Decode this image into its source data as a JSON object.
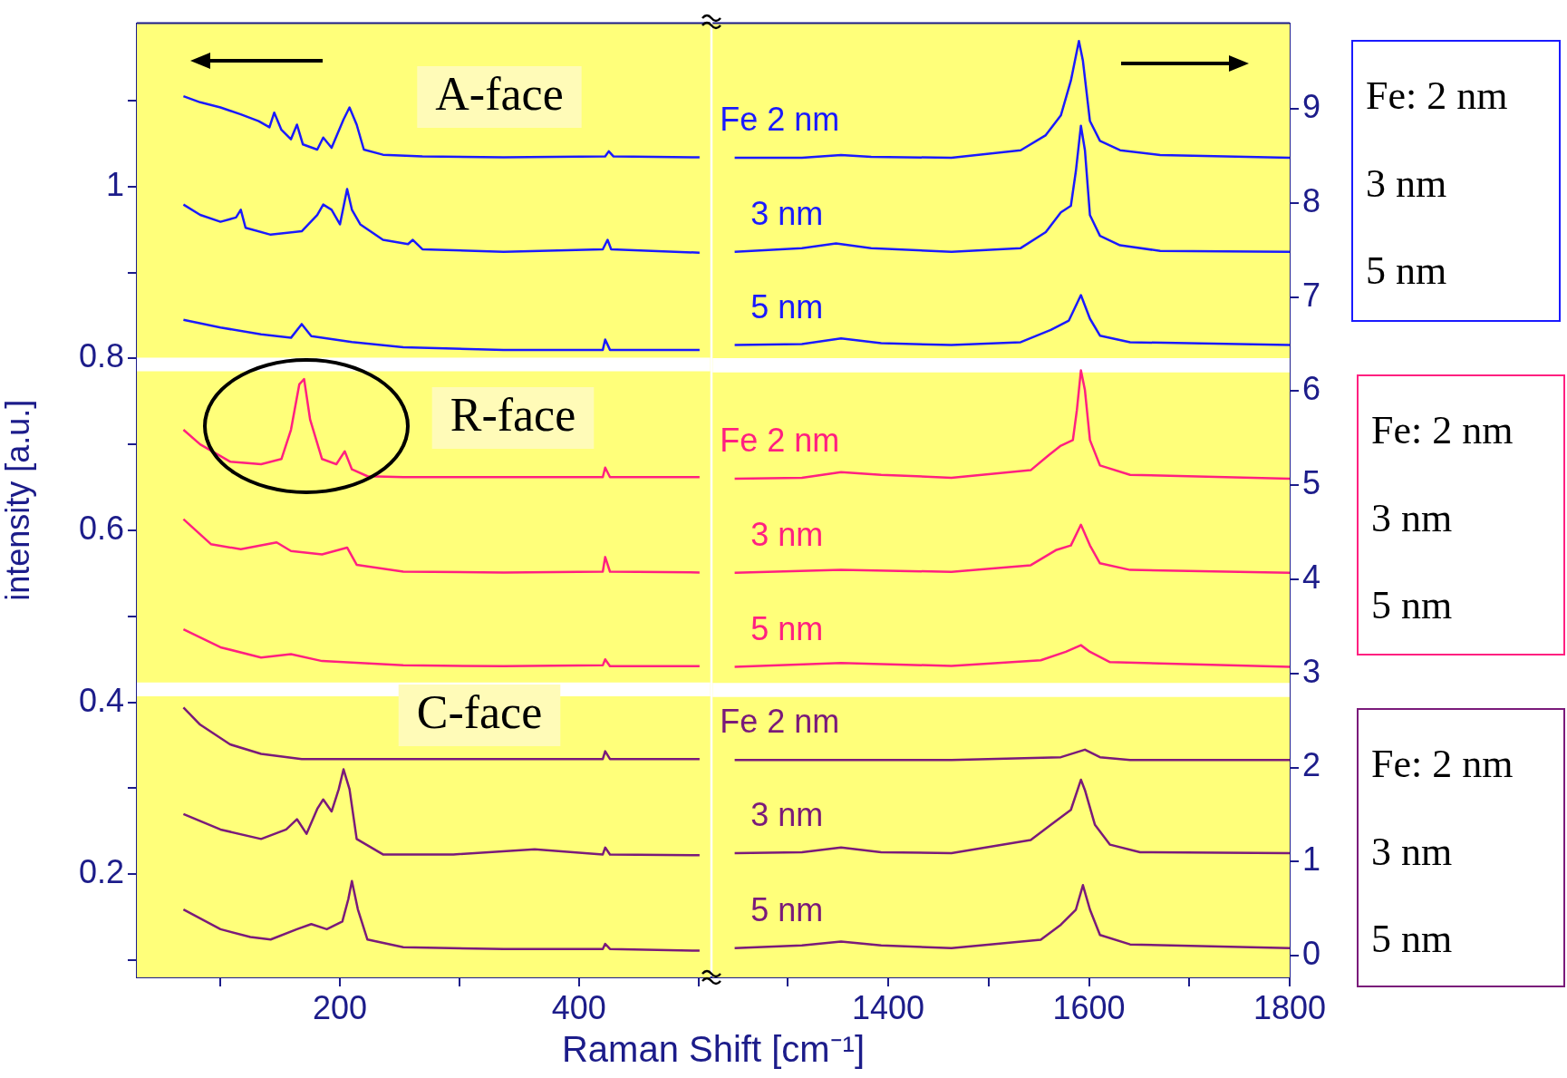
{
  "chart_data": [
    {
      "type": "line",
      "xlabel": "Raman Shift [cm⁻¹]",
      "ylabel": "intensity [a.u.]",
      "xlim": [
        30,
        510
      ],
      "xticks": [
        {
          "value": 100,
          "label": null
        },
        200,
        {
          "value": 300,
          "label": null
        },
        400,
        {
          "value": 500,
          "label": null
        }
      ],
      "ylim": [
        0.08,
        1.19
      ],
      "yticks": [
        {
          "value": 0.1,
          "label": null
        },
        0.2,
        {
          "value": 0.3,
          "label": null
        },
        0.4,
        {
          "value": 0.5,
          "label": null
        },
        0.6,
        {
          "value": 0.7,
          "label": null
        },
        0.8,
        {
          "value": 0.9,
          "label": null
        },
        1,
        {
          "value": 1.1,
          "label": null
        }
      ],
      "annotations": [
        "A-face",
        "R-face",
        "C-face"
      ],
      "bands": [
        {
          "axis": "y",
          "from": 0.785,
          "to": 0.801,
          "color": "#ffffff"
        },
        {
          "axis": "y",
          "from": 0.407,
          "to": 0.423,
          "color": "#ffffff"
        }
      ],
      "series": [
        {
          "color": "#1a1aff",
          "x": [
            69,
            83,
            100,
            117,
            132,
            141,
            145,
            151,
            159,
            164,
            169,
            181,
            186,
            193,
            203,
            208,
            214,
            220,
            236,
            269,
            337,
            422,
            425,
            429,
            501
          ],
          "values": [
            1.105,
            1.098,
            1.092,
            1.084,
            1.076,
            1.069,
            1.086,
            1.066,
            1.055,
            1.072,
            1.049,
            1.043,
            1.057,
            1.045,
            1.078,
            1.092,
            1.072,
            1.043,
            1.037,
            1.035,
            1.034,
            1.035,
            1.041,
            1.035,
            1.034
          ]
        },
        {
          "color": "#1a1aff",
          "x": [
            69,
            83,
            100,
            113,
            117,
            121,
            142,
            168,
            181,
            186,
            193,
            200,
            206,
            210,
            217,
            236,
            257,
            261,
            269,
            337,
            420,
            424,
            427,
            501
          ],
          "values": [
            0.979,
            0.967,
            0.959,
            0.964,
            0.973,
            0.952,
            0.944,
            0.948,
            0.967,
            0.979,
            0.973,
            0.956,
            0.997,
            0.973,
            0.956,
            0.938,
            0.933,
            0.938,
            0.927,
            0.924,
            0.927,
            0.938,
            0.927,
            0.923
          ]
        },
        {
          "color": "#1a1aff",
          "x": [
            69,
            100,
            134,
            159,
            168,
            176,
            210,
            253,
            337,
            420,
            422,
            426,
            501
          ],
          "values": [
            0.845,
            0.836,
            0.828,
            0.824,
            0.84,
            0.826,
            0.819,
            0.813,
            0.81,
            0.81,
            0.822,
            0.81,
            0.81
          ]
        },
        {
          "color": "#ff2080",
          "x": [
            69,
            83,
            108,
            134,
            151,
            159,
            166,
            170,
            175,
            185,
            197,
            204,
            210,
            223,
            253,
            337,
            420,
            422,
            426,
            501
          ],
          "values": [
            0.717,
            0.7,
            0.68,
            0.677,
            0.683,
            0.717,
            0.77,
            0.776,
            0.729,
            0.683,
            0.677,
            0.692,
            0.671,
            0.663,
            0.662,
            0.662,
            0.662,
            0.673,
            0.662,
            0.662
          ]
        },
        {
          "color": "#ff2080",
          "x": [
            69,
            92,
            117,
            147,
            159,
            185,
            206,
            214,
            253,
            337,
            420,
            422,
            426,
            501
          ],
          "values": [
            0.613,
            0.584,
            0.578,
            0.586,
            0.576,
            0.572,
            0.58,
            0.56,
            0.552,
            0.551,
            0.552,
            0.569,
            0.552,
            0.551
          ]
        },
        {
          "color": "#ff2080",
          "x": [
            69,
            100,
            134,
            159,
            185,
            253,
            337,
            420,
            422,
            426,
            501
          ],
          "values": [
            0.485,
            0.464,
            0.452,
            0.456,
            0.448,
            0.443,
            0.442,
            0.443,
            0.45,
            0.442,
            0.442
          ]
        },
        {
          "color": "#7a1a7a",
          "x": [
            69,
            83,
            108,
            134,
            168,
            253,
            337,
            420,
            422,
            426,
            501
          ],
          "values": [
            0.394,
            0.374,
            0.351,
            0.34,
            0.334,
            0.334,
            0.334,
            0.334,
            0.343,
            0.334,
            0.334
          ]
        },
        {
          "color": "#7a1a7a",
          "x": [
            69,
            100,
            134,
            155,
            164,
            172,
            181,
            186,
            193,
            199,
            203,
            208,
            214,
            236,
            295,
            363,
            420,
            422,
            426,
            501
          ],
          "values": [
            0.27,
            0.252,
            0.241,
            0.252,
            0.264,
            0.247,
            0.276,
            0.287,
            0.273,
            0.299,
            0.322,
            0.299,
            0.241,
            0.223,
            0.223,
            0.229,
            0.223,
            0.231,
            0.223,
            0.222
          ]
        },
        {
          "color": "#7a1a7a",
          "x": [
            69,
            100,
            125,
            142,
            164,
            176,
            189,
            202,
            207,
            210,
            215,
            223,
            253,
            337,
            420,
            422,
            426,
            501
          ],
          "values": [
            0.159,
            0.136,
            0.127,
            0.124,
            0.136,
            0.142,
            0.136,
            0.145,
            0.171,
            0.192,
            0.159,
            0.124,
            0.115,
            0.113,
            0.113,
            0.119,
            0.113,
            0.111
          ]
        }
      ]
    },
    {
      "type": "line",
      "xlim": [
        1225,
        1800
      ],
      "xticks": [
        {
          "value": 1300,
          "label": null
        },
        1400,
        {
          "value": 1500,
          "label": null
        },
        1600,
        {
          "value": 1700,
          "label": null
        },
        1800
      ],
      "ylim": [
        -0.23,
        9.91
      ],
      "yticks": [
        0,
        1,
        2,
        3,
        4,
        5,
        6,
        7,
        8,
        9
      ],
      "annotations": [
        "Fe: 2 nm",
        "3 nm",
        "5 nm",
        "Fe: 2 nm",
        "3 nm",
        "5 nm",
        "Fe: 2 nm",
        "3 nm",
        "5 nm"
      ],
      "bands": [
        {
          "axis": "y",
          "from": 6.2,
          "to": 6.35,
          "color": "#ffffff"
        },
        {
          "axis": "y",
          "from": 2.75,
          "to": 2.9,
          "color": "#ffffff"
        }
      ],
      "series": [
        {
          "name": "Fe 2 nm",
          "color": "#1a1aff",
          "x": [
            1247,
            1314,
            1353,
            1383,
            1463,
            1532,
            1557,
            1572,
            1582,
            1590,
            1594,
            1601,
            1611,
            1631,
            1671,
            1800
          ],
          "values": [
            8.48,
            8.48,
            8.51,
            8.49,
            8.48,
            8.56,
            8.72,
            8.93,
            9.3,
            9.72,
            9.51,
            8.87,
            8.66,
            8.56,
            8.51,
            8.48
          ]
        },
        {
          "name": "3 nm",
          "color": "#1a1aff",
          "x": [
            1247,
            1314,
            1348,
            1383,
            1463,
            1532,
            1557,
            1572,
            1582,
            1587,
            1592,
            1596,
            1601,
            1611,
            1631,
            1671,
            1800
          ],
          "values": [
            7.48,
            7.52,
            7.57,
            7.52,
            7.48,
            7.52,
            7.69,
            7.9,
            7.97,
            8.34,
            8.82,
            8.56,
            7.87,
            7.65,
            7.55,
            7.49,
            7.48
          ]
        },
        {
          "name": "5 nm",
          "color": "#1a1aff",
          "x": [
            1247,
            1314,
            1353,
            1393,
            1463,
            1532,
            1562,
            1580,
            1592,
            1601,
            1611,
            1641,
            1800
          ],
          "values": [
            6.49,
            6.5,
            6.56,
            6.51,
            6.49,
            6.52,
            6.65,
            6.75,
            7.02,
            6.77,
            6.59,
            6.52,
            6.49
          ]
        },
        {
          "name": "Fe 2 nm",
          "color": "#ff2080",
          "x": [
            1247,
            1314,
            1353,
            1393,
            1463,
            1542,
            1560,
            1572,
            1584,
            1588,
            1592,
            1596,
            1601,
            1611,
            1641,
            1800
          ],
          "values": [
            5.07,
            5.08,
            5.14,
            5.11,
            5.08,
            5.16,
            5.32,
            5.42,
            5.48,
            5.8,
            6.22,
            6.01,
            5.48,
            5.21,
            5.11,
            5.07
          ]
        },
        {
          "name": "3 nm",
          "color": "#ff2080",
          "x": [
            1247,
            1353,
            1463,
            1542,
            1567,
            1582,
            1592,
            1601,
            1611,
            1641,
            1800
          ],
          "values": [
            4.07,
            4.1,
            4.08,
            4.15,
            4.31,
            4.36,
            4.58,
            4.36,
            4.17,
            4.1,
            4.07
          ]
        },
        {
          "name": "5 nm",
          "color": "#ff2080",
          "x": [
            1247,
            1353,
            1463,
            1552,
            1577,
            1592,
            1601,
            1621,
            1800
          ],
          "values": [
            3.07,
            3.11,
            3.08,
            3.14,
            3.23,
            3.3,
            3.23,
            3.12,
            3.07
          ]
        },
        {
          "name": "Fe 2 nm",
          "color": "#7a1a7a",
          "x": [
            1247,
            1463,
            1572,
            1596,
            1611,
            1641,
            1800
          ],
          "values": [
            2.08,
            2.08,
            2.11,
            2.19,
            2.11,
            2.08,
            2.08
          ]
        },
        {
          "name": "3 nm",
          "color": "#7a1a7a",
          "x": [
            1247,
            1314,
            1353,
            1393,
            1463,
            1542,
            1562,
            1582,
            1592,
            1596,
            1606,
            1621,
            1651,
            1800
          ],
          "values": [
            1.09,
            1.1,
            1.15,
            1.1,
            1.09,
            1.23,
            1.39,
            1.55,
            1.87,
            1.76,
            1.39,
            1.18,
            1.1,
            1.09
          ]
        },
        {
          "name": "5 nm",
          "color": "#7a1a7a",
          "x": [
            1247,
            1314,
            1353,
            1393,
            1463,
            1552,
            1572,
            1587,
            1594,
            1601,
            1611,
            1641,
            1800
          ],
          "values": [
            0.08,
            0.11,
            0.15,
            0.11,
            0.08,
            0.17,
            0.33,
            0.49,
            0.75,
            0.49,
            0.22,
            0.12,
            0.08
          ]
        }
      ]
    }
  ]
}
